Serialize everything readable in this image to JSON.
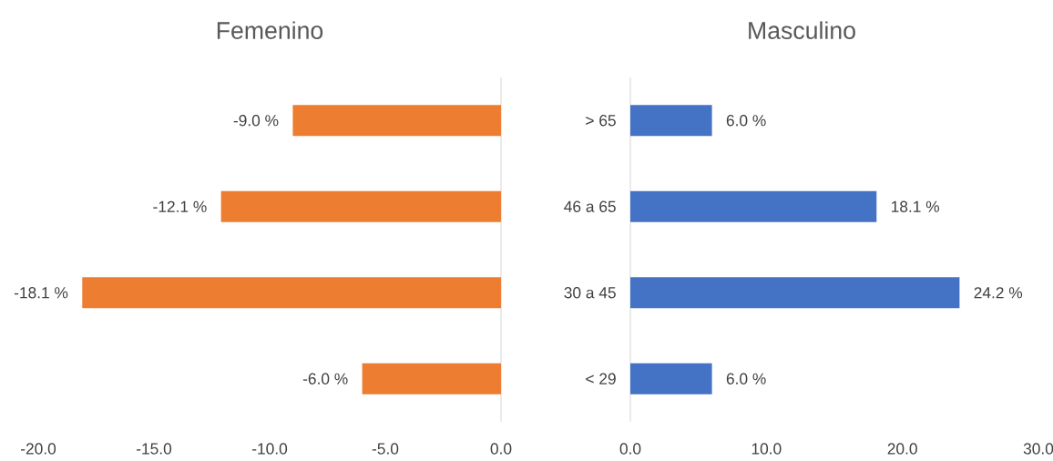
{
  "chart_data": [
    {
      "type": "bar",
      "orientation": "horizontal",
      "title": "Femenino",
      "categories": [
        null,
        null,
        null,
        null
      ],
      "values": [
        -9.0,
        -12.1,
        -18.1,
        -6.0
      ],
      "color": "#ed7d31",
      "value_labels": [
        "-9.0 %",
        "-12.1 %",
        "-18.1 %",
        "-6.0 %"
      ],
      "xlim": [
        -20,
        0
      ],
      "xticks": [
        {
          "value": -20,
          "label": "-20.0"
        },
        {
          "value": -15,
          "label": "-15.0"
        },
        {
          "value": -10,
          "label": "-10.0"
        },
        {
          "value": -5,
          "label": "-5.0"
        },
        {
          "value": 0,
          "label": "0.0"
        }
      ]
    },
    {
      "type": "bar",
      "orientation": "horizontal",
      "title": "Masculino",
      "categories": [
        "> 65",
        "46 a 65",
        "30 a 45",
        "< 29"
      ],
      "values": [
        6.0,
        18.1,
        24.2,
        6.0
      ],
      "color": "#4472c4",
      "value_labels": [
        "6.0 %",
        "18.1 %",
        "24.2 %",
        "6.0 %"
      ],
      "xlim": [
        0,
        30
      ],
      "xticks": [
        {
          "value": 0,
          "label": "0.0"
        },
        {
          "value": 10,
          "label": "10.0"
        },
        {
          "value": 20,
          "label": "20.0"
        },
        {
          "value": 30,
          "label": "30.0"
        }
      ]
    }
  ]
}
